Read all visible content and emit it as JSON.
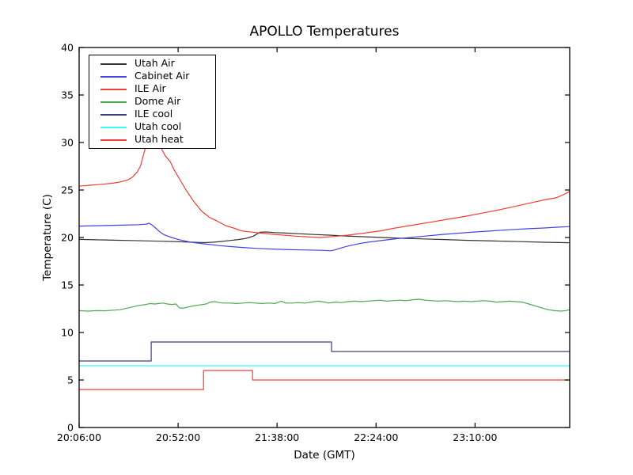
{
  "figure": {
    "background": "#ffffff",
    "axis_color": "#000000"
  },
  "chart_data": {
    "type": "line",
    "title": "APOLLO Temperatures",
    "xlabel": "Date (GMT)",
    "ylabel": "Temperature (C)",
    "ylim": [
      0,
      40
    ],
    "yticks": [
      0,
      5,
      10,
      15,
      20,
      25,
      30,
      35,
      40
    ],
    "grid": false,
    "x_unit": "minutes after 20:06:00",
    "x_range_minutes": [
      0,
      228
    ],
    "xticks": [
      {
        "minutes": 0,
        "label": "20:06:00"
      },
      {
        "minutes": 46,
        "label": "20:52:00"
      },
      {
        "minutes": 92,
        "label": "21:38:00"
      },
      {
        "minutes": 138,
        "label": "22:24:00"
      },
      {
        "minutes": 184,
        "label": "23:10:00"
      }
    ],
    "legend": {
      "position": "upper left",
      "entries": [
        "Utah Air",
        "Cabinet Air",
        "ILE Air",
        "Dome Air",
        "ILE cool",
        "Utah cool",
        "Utah heat"
      ]
    },
    "series": [
      {
        "name": "Utah Air",
        "color": "#333333",
        "points": [
          [
            0,
            19.8
          ],
          [
            8,
            19.76
          ],
          [
            16,
            19.72
          ],
          [
            24,
            19.68
          ],
          [
            32,
            19.64
          ],
          [
            40,
            19.6
          ],
          [
            47,
            19.55
          ],
          [
            53,
            19.5
          ],
          [
            58,
            19.46
          ],
          [
            62,
            19.5
          ],
          [
            66,
            19.58
          ],
          [
            70,
            19.68
          ],
          [
            74,
            19.78
          ],
          [
            77,
            19.88
          ],
          [
            79,
            20.0
          ],
          [
            81,
            20.15
          ],
          [
            82.5,
            20.35
          ],
          [
            84,
            20.55
          ],
          [
            87,
            20.58
          ],
          [
            91,
            20.52
          ],
          [
            96,
            20.47
          ],
          [
            102,
            20.4
          ],
          [
            109,
            20.32
          ],
          [
            116,
            20.25
          ],
          [
            124,
            20.16
          ],
          [
            132,
            20.08
          ],
          [
            141,
            20.0
          ],
          [
            150,
            19.92
          ],
          [
            160,
            19.85
          ],
          [
            170,
            19.78
          ],
          [
            181,
            19.7
          ],
          [
            193,
            19.63
          ],
          [
            205,
            19.57
          ],
          [
            216,
            19.5
          ],
          [
            228,
            19.45
          ]
        ]
      },
      {
        "name": "Cabinet Air",
        "color": "#4444dd",
        "points": [
          [
            0,
            21.2
          ],
          [
            10,
            21.25
          ],
          [
            20,
            21.3
          ],
          [
            28,
            21.35
          ],
          [
            31,
            21.4
          ],
          [
            32.5,
            21.5
          ],
          [
            34,
            21.3
          ],
          [
            35.5,
            21.0
          ],
          [
            37,
            20.7
          ],
          [
            38.6,
            20.4
          ],
          [
            40.5,
            20.2
          ],
          [
            43,
            20.0
          ],
          [
            46,
            19.8
          ],
          [
            49,
            19.65
          ],
          [
            52,
            19.5
          ],
          [
            56,
            19.38
          ],
          [
            60,
            19.28
          ],
          [
            65,
            19.15
          ],
          [
            70,
            19.05
          ],
          [
            76,
            18.95
          ],
          [
            83,
            18.85
          ],
          [
            90,
            18.78
          ],
          [
            98,
            18.72
          ],
          [
            106,
            18.68
          ],
          [
            113,
            18.65
          ],
          [
            117,
            18.6
          ],
          [
            119,
            18.7
          ],
          [
            121,
            18.85
          ],
          [
            124,
            19.05
          ],
          [
            127,
            19.2
          ],
          [
            130,
            19.35
          ],
          [
            134,
            19.5
          ],
          [
            138,
            19.62
          ],
          [
            143,
            19.75
          ],
          [
            148,
            19.88
          ],
          [
            154,
            20.0
          ],
          [
            161,
            20.15
          ],
          [
            168,
            20.3
          ],
          [
            176,
            20.45
          ],
          [
            184,
            20.58
          ],
          [
            192,
            20.7
          ],
          [
            200,
            20.82
          ],
          [
            208,
            20.92
          ],
          [
            216,
            21.0
          ],
          [
            222,
            21.08
          ],
          [
            228,
            21.15
          ]
        ]
      },
      {
        "name": "ILE Air",
        "color": "#ee4035",
        "points": [
          [
            0,
            25.4
          ],
          [
            5,
            25.5
          ],
          [
            10,
            25.6
          ],
          [
            15,
            25.7
          ],
          [
            18,
            25.8
          ],
          [
            21,
            25.95
          ],
          [
            23,
            26.1
          ],
          [
            25,
            26.4
          ],
          [
            27,
            26.9
          ],
          [
            28.5,
            27.5
          ],
          [
            29.8,
            28.6
          ],
          [
            31,
            29.6
          ],
          [
            32.5,
            30.6
          ],
          [
            34,
            31.15
          ],
          [
            35.5,
            30.9
          ],
          [
            37,
            30.1
          ],
          [
            38.6,
            29.2
          ],
          [
            40,
            28.6
          ],
          [
            42.3,
            28.0
          ],
          [
            44,
            27.2
          ],
          [
            46,
            26.4
          ],
          [
            49.7,
            25.0
          ],
          [
            53.4,
            23.75
          ],
          [
            57,
            22.75
          ],
          [
            60.7,
            22.1
          ],
          [
            64.4,
            21.7
          ],
          [
            68.1,
            21.25
          ],
          [
            71.8,
            21.0
          ],
          [
            75.4,
            20.7
          ],
          [
            79,
            20.6
          ],
          [
            85,
            20.45
          ],
          [
            92,
            20.3
          ],
          [
            100,
            20.15
          ],
          [
            107,
            20.05
          ],
          [
            112,
            20.0
          ],
          [
            118,
            20.1
          ],
          [
            125,
            20.25
          ],
          [
            132,
            20.45
          ],
          [
            140,
            20.7
          ],
          [
            147,
            21.0
          ],
          [
            155,
            21.3
          ],
          [
            163,
            21.6
          ],
          [
            172,
            21.95
          ],
          [
            180,
            22.25
          ],
          [
            188,
            22.6
          ],
          [
            196,
            22.95
          ],
          [
            204,
            23.35
          ],
          [
            211,
            23.7
          ],
          [
            217,
            24.0
          ],
          [
            222,
            24.2
          ],
          [
            225,
            24.5
          ],
          [
            228,
            24.85
          ]
        ]
      },
      {
        "name": "Dome Air",
        "color": "#4fa84f",
        "points": [
          [
            0,
            12.3
          ],
          [
            4,
            12.25
          ],
          [
            8,
            12.3
          ],
          [
            12,
            12.28
          ],
          [
            16,
            12.35
          ],
          [
            19,
            12.4
          ],
          [
            22,
            12.55
          ],
          [
            25,
            12.7
          ],
          [
            28,
            12.85
          ],
          [
            31,
            12.95
          ],
          [
            33,
            13.05
          ],
          [
            35,
            13.0
          ],
          [
            37,
            13.05
          ],
          [
            39,
            13.1
          ],
          [
            41,
            13.0
          ],
          [
            43,
            12.95
          ],
          [
            45,
            13.0
          ],
          [
            46.5,
            12.6
          ],
          [
            48,
            12.55
          ],
          [
            50,
            12.65
          ],
          [
            53,
            12.8
          ],
          [
            56,
            12.9
          ],
          [
            59,
            13.0
          ],
          [
            61,
            13.2
          ],
          [
            63,
            13.25
          ],
          [
            65,
            13.15
          ],
          [
            67,
            13.1
          ],
          [
            70,
            13.1
          ],
          [
            73,
            13.05
          ],
          [
            76,
            13.1
          ],
          [
            79,
            13.15
          ],
          [
            82,
            13.1
          ],
          [
            85,
            13.05
          ],
          [
            88,
            13.1
          ],
          [
            91,
            13.05
          ],
          [
            94,
            13.3
          ],
          [
            96,
            13.1
          ],
          [
            99,
            13.1
          ],
          [
            102,
            13.15
          ],
          [
            105,
            13.1
          ],
          [
            108,
            13.2
          ],
          [
            111,
            13.3
          ],
          [
            114,
            13.2
          ],
          [
            116,
            13.1
          ],
          [
            119,
            13.2
          ],
          [
            122,
            13.15
          ],
          [
            125,
            13.25
          ],
          [
            128,
            13.3
          ],
          [
            131,
            13.25
          ],
          [
            134,
            13.3
          ],
          [
            137,
            13.35
          ],
          [
            140,
            13.4
          ],
          [
            143,
            13.3
          ],
          [
            146,
            13.35
          ],
          [
            149,
            13.4
          ],
          [
            152,
            13.35
          ],
          [
            155,
            13.45
          ],
          [
            158,
            13.5
          ],
          [
            161,
            13.4
          ],
          [
            164,
            13.35
          ],
          [
            167,
            13.3
          ],
          [
            170,
            13.35
          ],
          [
            173,
            13.3
          ],
          [
            176,
            13.25
          ],
          [
            179,
            13.3
          ],
          [
            182,
            13.25
          ],
          [
            185,
            13.3
          ],
          [
            188,
            13.35
          ],
          [
            191,
            13.3
          ],
          [
            194,
            13.2
          ],
          [
            197,
            13.25
          ],
          [
            200,
            13.3
          ],
          [
            203,
            13.25
          ],
          [
            206,
            13.2
          ],
          [
            209,
            13.0
          ],
          [
            212,
            12.8
          ],
          [
            215,
            12.6
          ],
          [
            218,
            12.4
          ],
          [
            221,
            12.3
          ],
          [
            224,
            12.25
          ],
          [
            226,
            12.3
          ],
          [
            228,
            12.4
          ]
        ]
      },
      {
        "name": "ILE cool",
        "color": "#3d3d82",
        "points": [
          [
            0,
            7.0
          ],
          [
            33.5,
            7.0
          ],
          [
            33.5,
            9.0
          ],
          [
            117.3,
            9.0
          ],
          [
            117.3,
            8.0
          ],
          [
            228,
            8.0
          ]
        ]
      },
      {
        "name": "Utah cool",
        "color": "#2fffff",
        "points": [
          [
            0,
            6.5
          ],
          [
            228,
            6.5
          ]
        ]
      },
      {
        "name": "Utah heat",
        "color": "#ee4035",
        "points": [
          [
            0,
            4.0
          ],
          [
            57.8,
            4.0
          ],
          [
            57.8,
            6.0
          ],
          [
            80.6,
            6.0
          ],
          [
            80.6,
            5.0
          ],
          [
            228,
            5.0
          ]
        ]
      }
    ]
  }
}
